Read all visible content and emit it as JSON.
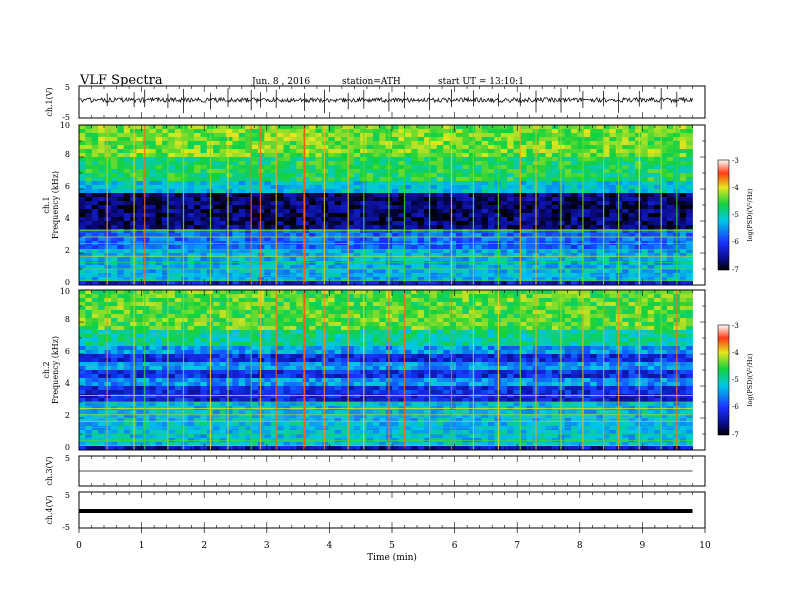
{
  "header": {
    "title": "VLF Spectra",
    "date": "Jun. 8 , 2016",
    "station": "station=ATH",
    "start": "start UT = 13:10:1"
  },
  "chart_data": [
    {
      "type": "line",
      "panel": "ch1-waveform",
      "ylabel": "ch.1(V)",
      "ylim": [
        -5,
        5
      ],
      "yticks": [
        "5",
        "-5"
      ],
      "x": [
        0,
        1,
        2,
        3,
        4,
        5,
        6,
        7,
        8,
        9,
        9.8
      ],
      "values": [
        0.1,
        -0.2,
        0.1,
        -0.1,
        0.2,
        -0.1,
        0.1,
        0.0,
        -0.2,
        0.1,
        -0.1
      ]
    },
    {
      "type": "heatmap",
      "panel": "ch1-spectrogram",
      "ylabel_lines": [
        "ch.1",
        "Frequency (kHz)"
      ],
      "ylim": [
        0,
        10
      ],
      "yticks": [
        "0",
        "2",
        "4",
        "6",
        "8",
        "10"
      ],
      "colorbar": {
        "label": "log(PSD)(V²/Hz)",
        "ticks": [
          "-3",
          "-4",
          "-5",
          "-6",
          "-7"
        ],
        "range": [
          -7,
          -3
        ]
      },
      "time_range_min": [
        0,
        9.8
      ],
      "impulse_times_min": [
        0.45,
        0.88,
        1.05,
        1.42,
        1.67,
        2.1,
        2.38,
        2.75,
        2.9,
        3.15,
        3.6,
        3.92,
        4.3,
        4.55,
        4.95,
        5.2,
        5.6,
        5.95,
        6.3,
        6.7,
        7.05,
        7.3,
        7.7,
        8.05,
        8.38,
        8.62,
        8.95,
        9.3,
        9.55
      ]
    },
    {
      "type": "heatmap",
      "panel": "ch2-spectrogram",
      "ylabel_lines": [
        "ch.2",
        "Frequency (kHz)"
      ],
      "ylim": [
        0,
        10
      ],
      "yticks": [
        "0",
        "2",
        "4",
        "6",
        "8",
        "10"
      ],
      "colorbar": {
        "label": "log(PSD)(V²/Hz)",
        "ticks": [
          "-3",
          "-4",
          "-5",
          "-6",
          "-7"
        ],
        "range": [
          -7,
          -3
        ]
      },
      "time_range_min": [
        0,
        9.8
      ]
    },
    {
      "type": "line",
      "panel": "ch3-waveform",
      "ylabel": "ch.3(V)",
      "ylim": [
        -5,
        5
      ],
      "yticks": [
        "5"
      ],
      "x": [
        0,
        9.8
      ],
      "values": [
        0,
        0
      ]
    },
    {
      "type": "line",
      "panel": "ch4-waveform",
      "ylabel": "ch.4(V)",
      "ylim": [
        -5,
        5
      ],
      "yticks": [
        "5",
        "-5"
      ],
      "x": [
        0,
        9.8
      ],
      "values": [
        0,
        0
      ]
    }
  ],
  "xaxis": {
    "label": "Time (min)",
    "ticks": [
      "0",
      "1",
      "2",
      "3",
      "4",
      "5",
      "6",
      "7",
      "8",
      "9",
      "10"
    ],
    "range": [
      0,
      10
    ]
  },
  "colors": {
    "background": "#ffffff",
    "axes": "#000000",
    "trace": "#111111"
  }
}
